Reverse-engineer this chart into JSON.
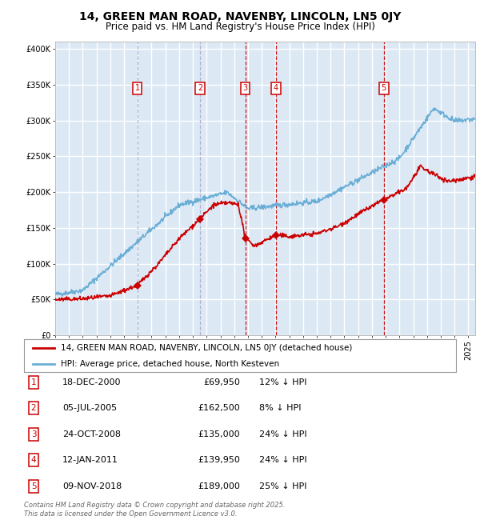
{
  "title": "14, GREEN MAN ROAD, NAVENBY, LINCOLN, LN5 0JY",
  "subtitle": "Price paid vs. HM Land Registry's House Price Index (HPI)",
  "ylabel_ticks": [
    "£0",
    "£50K",
    "£100K",
    "£150K",
    "£200K",
    "£250K",
    "£300K",
    "£350K",
    "£400K"
  ],
  "ytick_values": [
    0,
    50000,
    100000,
    150000,
    200000,
    250000,
    300000,
    350000,
    400000
  ],
  "ylim": [
    0,
    410000
  ],
  "xlim_start": 1995.0,
  "xlim_end": 2025.5,
  "background_color": "#dce9f5",
  "grid_color": "#ffffff",
  "sale_dates": [
    2000.96,
    2005.51,
    2008.81,
    2011.04,
    2018.86
  ],
  "sale_prices": [
    69950,
    162500,
    135000,
    139950,
    189000
  ],
  "sale_labels": [
    "1",
    "2",
    "3",
    "4",
    "5"
  ],
  "sale_box_color": "#cc0000",
  "sale_vline_colors": [
    "#aaaacc",
    "#aaaacc",
    "#cc0000",
    "#cc0000",
    "#cc0000"
  ],
  "sale_vline_styles": [
    "--",
    "--",
    "--",
    "--",
    "--"
  ],
  "hpi_line_color": "#6aaed6",
  "price_line_color": "#cc0000",
  "legend_items": [
    "14, GREEN MAN ROAD, NAVENBY, LINCOLN, LN5 0JY (detached house)",
    "HPI: Average price, detached house, North Kesteven"
  ],
  "table_rows": [
    {
      "num": "1",
      "date": "18-DEC-2000",
      "price": "£69,950",
      "hpi": "12% ↓ HPI"
    },
    {
      "num": "2",
      "date": "05-JUL-2005",
      "price": "£162,500",
      "hpi": "8% ↓ HPI"
    },
    {
      "num": "3",
      "date": "24-OCT-2008",
      "price": "£135,000",
      "hpi": "24% ↓ HPI"
    },
    {
      "num": "4",
      "date": "12-JAN-2011",
      "price": "£139,950",
      "hpi": "24% ↓ HPI"
    },
    {
      "num": "5",
      "date": "09-NOV-2018",
      "price": "£189,000",
      "hpi": "25% ↓ HPI"
    }
  ],
  "footer": "Contains HM Land Registry data © Crown copyright and database right 2025.\nThis data is licensed under the Open Government Licence v3.0.",
  "title_fontsize": 10,
  "subtitle_fontsize": 8.5,
  "tick_fontsize": 7,
  "legend_fontsize": 7.5,
  "table_fontsize": 8,
  "footer_fontsize": 6
}
